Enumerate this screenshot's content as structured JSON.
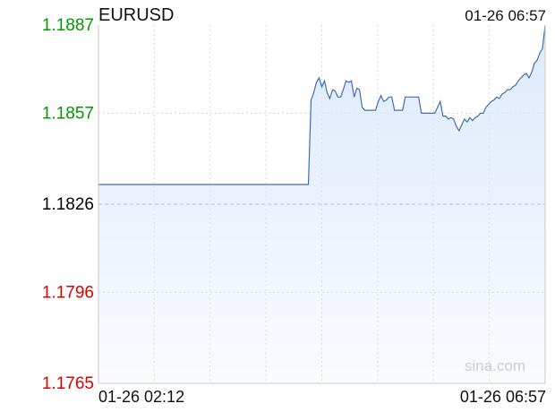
{
  "header": {
    "symbol": "EURUSD",
    "timestamp": "01-26 06:57"
  },
  "footer": {
    "start_time": "01-26 02:12",
    "end_time": "01-26 06:57"
  },
  "watermark": "sina.com",
  "colors": {
    "up": "#009900",
    "down": "#dd0000",
    "neutral": "#000000",
    "line": "#3f6fb0",
    "fill": "#dce8fb"
  },
  "chart_data": {
    "type": "area",
    "title": "EURUSD",
    "xlabel": "",
    "ylabel": "",
    "baseline": 1.1826,
    "ylim": [
      1.1765,
      1.1887
    ],
    "y_ticks": [
      {
        "value": 1.1887,
        "label": "1.1887",
        "tone": "up"
      },
      {
        "value": 1.1857,
        "label": "1.1857",
        "tone": "up"
      },
      {
        "value": 1.1826,
        "label": "1.1826",
        "tone": "neutral"
      },
      {
        "value": 1.1796,
        "label": "1.1796",
        "tone": "down"
      },
      {
        "value": 1.1765,
        "label": "1.1765",
        "tone": "down"
      }
    ],
    "x_range": [
      "01-26 02:12",
      "01-26 06:57"
    ],
    "grid": true,
    "series": [
      {
        "x": [
          0,
          78,
          79,
          80,
          81,
          82,
          83,
          84,
          85,
          86,
          87,
          88,
          89,
          90,
          91,
          92,
          93,
          94,
          95,
          96,
          97,
          98,
          99,
          100,
          101,
          102,
          103,
          104,
          105,
          106,
          107,
          108,
          109,
          110,
          111,
          112,
          113,
          114,
          115,
          116,
          117,
          118,
          119,
          120,
          121,
          122,
          123,
          124,
          125,
          126,
          127,
          128,
          129,
          130,
          131,
          132,
          133,
          134,
          135,
          136,
          137,
          138,
          139,
          140,
          141,
          142,
          143,
          144,
          145,
          146,
          147,
          148,
          149,
          150,
          151,
          152,
          153,
          154,
          155,
          156,
          157,
          158,
          159,
          160,
          161,
          162,
          163,
          164,
          165,
          166
        ],
        "values": [
          1.18327,
          1.18327,
          1.18615,
          1.1864,
          1.18675,
          1.1869,
          1.1866,
          1.1868,
          1.1864,
          1.1862,
          1.1865,
          1.18645,
          1.18625,
          1.18625,
          1.1865,
          1.1868,
          1.18675,
          1.1868,
          1.18625,
          1.18655,
          1.1865,
          1.1859,
          1.1858,
          1.1858,
          1.1858,
          1.1858,
          1.1858,
          1.1861,
          1.1863,
          1.1861,
          1.18615,
          1.18625,
          1.18625,
          1.1858,
          1.1858,
          1.1858,
          1.1858,
          1.18625,
          1.18625,
          1.18625,
          1.18625,
          1.18625,
          1.18625,
          1.1857,
          1.1857,
          1.1857,
          1.1857,
          1.1857,
          1.1857,
          1.1859,
          1.1861,
          1.1856,
          1.1856,
          1.1855,
          1.18555,
          1.1855,
          1.18525,
          1.1851,
          1.1853,
          1.1855,
          1.1854,
          1.18555,
          1.18545,
          1.18555,
          1.1856,
          1.1857,
          1.1857,
          1.1859,
          1.186,
          1.1861,
          1.18615,
          1.18625,
          1.1862,
          1.18635,
          1.1864,
          1.1865,
          1.1865,
          1.1866,
          1.18665,
          1.1868,
          1.1869,
          1.187,
          1.18705,
          1.1869,
          1.1871,
          1.1874,
          1.1875,
          1.18775,
          1.1879,
          1.1887
        ]
      }
    ]
  }
}
